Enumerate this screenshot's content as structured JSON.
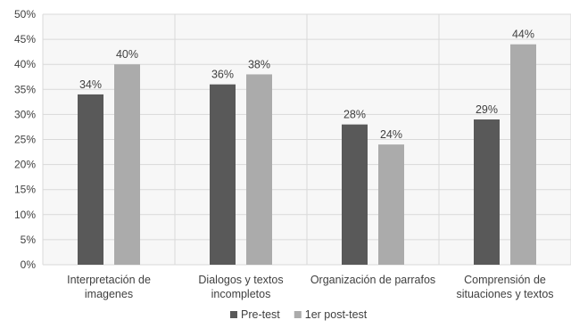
{
  "chart_data": {
    "type": "bar",
    "title": "",
    "xlabel": "",
    "ylabel": "",
    "ylim": [
      0,
      50
    ],
    "ytick_step": 5,
    "y_unit": "%",
    "grid": "both",
    "legend_position": "bottom",
    "categories": [
      [
        "Interpretación de",
        "imagenes"
      ],
      [
        "Dialogos y textos",
        "incompletos"
      ],
      [
        "Organización de parrafos"
      ],
      [
        "Comprensión de",
        "situaciones y textos"
      ]
    ],
    "series": [
      {
        "name": "Pre-test",
        "color": "#595959",
        "values": [
          34,
          36,
          28,
          29
        ]
      },
      {
        "name": "1er post-test",
        "color": "#ababab",
        "values": [
          40,
          38,
          24,
          44
        ]
      }
    ]
  }
}
